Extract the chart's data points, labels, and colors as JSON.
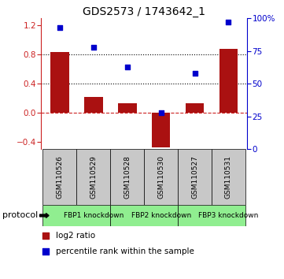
{
  "title": "GDS2573 / 1743642_1",
  "samples": [
    "GSM110526",
    "GSM110529",
    "GSM110528",
    "GSM110530",
    "GSM110527",
    "GSM110531"
  ],
  "log2_ratio": [
    0.84,
    0.22,
    0.13,
    -0.47,
    0.13,
    0.88
  ],
  "percentile_rank": [
    93,
    78,
    63,
    28,
    58,
    97
  ],
  "bar_color": "#aa1111",
  "dot_color": "#0000cc",
  "ylim_left": [
    -0.5,
    1.3
  ],
  "ylim_right": [
    0,
    100
  ],
  "yticks_left": [
    -0.4,
    0.0,
    0.4,
    0.8,
    1.2
  ],
  "yticks_right": [
    0,
    25,
    50,
    75,
    100
  ],
  "protocol_groups": [
    {
      "label": "FBP1 knockdown",
      "start": 0,
      "end": 2
    },
    {
      "label": "FBP2 knockdown",
      "start": 2,
      "end": 4
    },
    {
      "label": "FBP3 knockdown",
      "start": 4,
      "end": 6
    }
  ],
  "protocol_label": "protocol",
  "legend_items": [
    {
      "label": "log2 ratio",
      "color": "#aa1111"
    },
    {
      "label": "percentile rank within the sample",
      "color": "#0000cc"
    }
  ],
  "title_fontsize": 10,
  "tick_fontsize": 7.5,
  "sample_fontsize": 6.5,
  "protocol_fontsize": 8,
  "legend_fontsize": 7.5,
  "bar_color_gray": "#c8c8c8",
  "protocol_box_color": "#90ee90",
  "left_spine_color": "#cc2222",
  "right_spine_color": "#0000cc",
  "hline0_color": "#cc2222",
  "hline_dotted_color": "black"
}
